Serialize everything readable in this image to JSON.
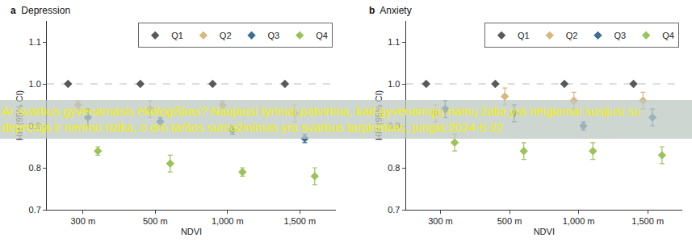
{
  "chart_data": [
    {
      "type": "scatter",
      "label": "a",
      "title": "Depression",
      "x_label": "NDVI",
      "y_label": "HR (95% CI)",
      "categories": [
        "300 m",
        "500 m",
        "1,000 m",
        "1,500 m"
      ],
      "series": [
        {
          "name": "Q1",
          "color": "#595959",
          "values": [
            1.0,
            1.0,
            1.0,
            1.0
          ]
        },
        {
          "name": "Q2",
          "color": "#d8b87c",
          "values": [
            0.95,
            0.94,
            0.95,
            0.93
          ],
          "error": [
            0.01,
            0.02,
            0.01,
            0.02
          ]
        },
        {
          "name": "Q3",
          "color": "#3d6f95",
          "values": [
            0.92,
            0.91,
            0.89,
            0.87
          ],
          "error": [
            0.02,
            0.01,
            0.01,
            0.01
          ]
        },
        {
          "name": "Q4",
          "color": "#9cc35a",
          "values": [
            0.84,
            0.81,
            0.79,
            0.78
          ],
          "error": [
            0.01,
            0.02,
            0.01,
            0.02
          ]
        }
      ],
      "ylim": [
        0.7,
        1.15
      ],
      "yticks": [
        0.7,
        0.8,
        0.9,
        {
          "value": 1.0,
          "label": "1.0"
        },
        1.1
      ],
      "reference_line": 1.0,
      "marker": "diamond",
      "legend": "top right",
      "grid": false
    },
    {
      "type": "scatter",
      "label": "b",
      "title": "Anxiety",
      "x_label": "NDVI",
      "y_label": "HR (95% CI)",
      "categories": [
        "300 m",
        "500 m",
        "1,000 m",
        "1,500 m"
      ],
      "series": [
        {
          "name": "Q1",
          "color": "#595959",
          "values": [
            1.0,
            1.0,
            1.0,
            1.0
          ]
        },
        {
          "name": "Q2",
          "color": "#d8b87c",
          "values": [
            0.93,
            0.97,
            0.96,
            0.96
          ],
          "error": [
            0.02,
            0.02,
            0.02,
            0.02
          ]
        },
        {
          "name": "Q3",
          "color": "#3d6f95",
          "values": [
            0.94,
            0.93,
            0.9,
            0.92
          ],
          "error": [
            0.02,
            0.02,
            0.01,
            0.02
          ]
        },
        {
          "name": "Q4",
          "color": "#9cc35a",
          "values": [
            0.86,
            0.84,
            0.84,
            0.83
          ],
          "error": [
            0.02,
            0.02,
            0.02,
            0.02
          ]
        }
      ],
      "ylim": [
        0.7,
        1.15
      ],
      "yticks": [
        0.7,
        0.8,
        0.9,
        {
          "value": 1.0,
          "label": "1.0"
        },
        1.1
      ],
      "reference_line": 1.0,
      "marker": "diamond",
      "legend": "top right",
      "grid": false
    }
  ],
  "overlay": {
    "text": "Ar svarbus gyvenamasis ekologiškas? Naujausi tyrimai patvirtina, kad gyvenamųjų namų žalia yra neigiamai susijusi su depresija ir nerimo rizika, o oro taršos sumažinimas yra svarbus tarpininkas, jungia:2024-6-22"
  }
}
